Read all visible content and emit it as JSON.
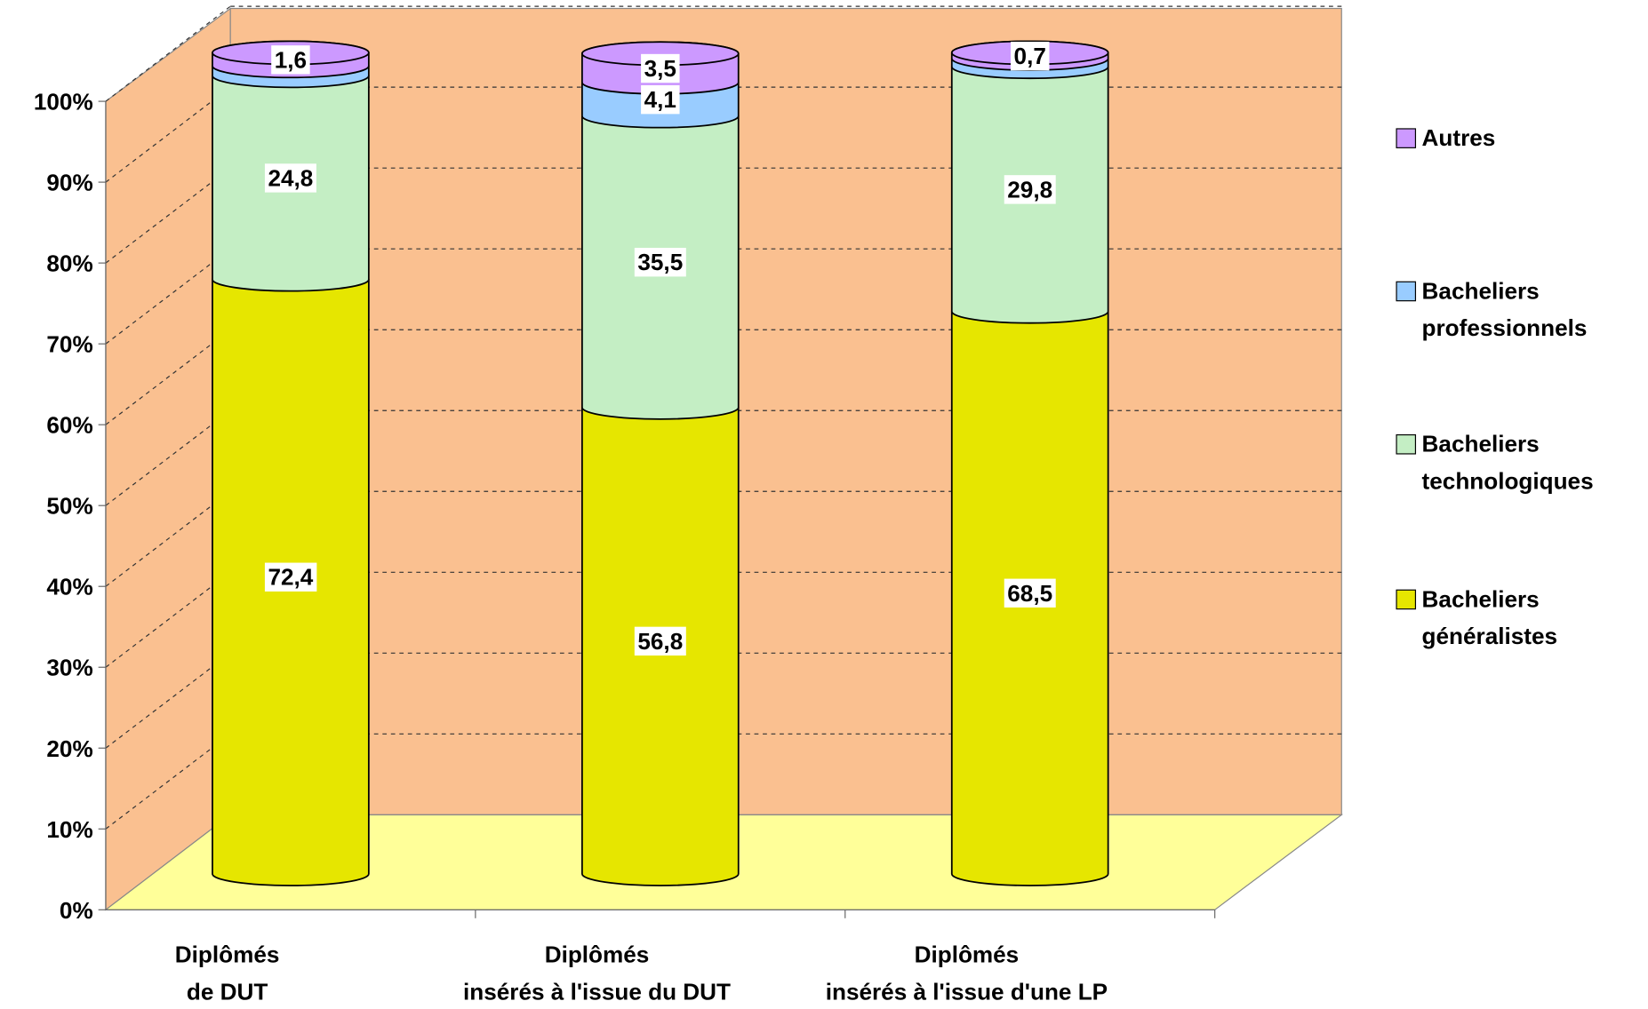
{
  "chart_data": {
    "type": "stacked-cylinder",
    "categories": [
      "Diplômés\nde DUT",
      "Diplômés\ninsérés à l'issue du DUT",
      "Diplômés\ninsérés à l'issue d'une LP"
    ],
    "series": [
      {
        "name": "Bacheliers\ngénéralistes",
        "color": "#e6e600",
        "values": [
          72.4,
          56.8,
          68.5
        ],
        "value_labels": [
          "72,4",
          "56,8",
          "68,5"
        ]
      },
      {
        "name": "Bacheliers\ntechnologiques",
        "color": "#c4eec4",
        "values": [
          24.8,
          35.5,
          29.8
        ],
        "value_labels": [
          "24,8",
          "35,5",
          "29,8"
        ]
      },
      {
        "name": "Bacheliers\nprofessionnels",
        "color": "#99ccff",
        "values": [
          1.2,
          4.1,
          1.0
        ],
        "value_labels": [
          null,
          "4,1",
          null
        ]
      },
      {
        "name": "Autres",
        "color": "#cc99ff",
        "values": [
          1.6,
          3.5,
          0.7
        ],
        "value_labels": [
          "1,6",
          "3,5",
          "0,7"
        ]
      }
    ],
    "ylim": [
      0,
      100
    ],
    "yticks": [
      {
        "value": 0,
        "label": "0%"
      },
      {
        "value": 10,
        "label": "10%"
      },
      {
        "value": 20,
        "label": "20%"
      },
      {
        "value": 30,
        "label": "30%"
      },
      {
        "value": 40,
        "label": "40%"
      },
      {
        "value": 50,
        "label": "50%"
      },
      {
        "value": 60,
        "label": "60%"
      },
      {
        "value": 70,
        "label": "70%"
      },
      {
        "value": 80,
        "label": "80%"
      },
      {
        "value": 90,
        "label": "90%"
      },
      {
        "value": 100,
        "label": "100%"
      }
    ],
    "grid": true
  }
}
